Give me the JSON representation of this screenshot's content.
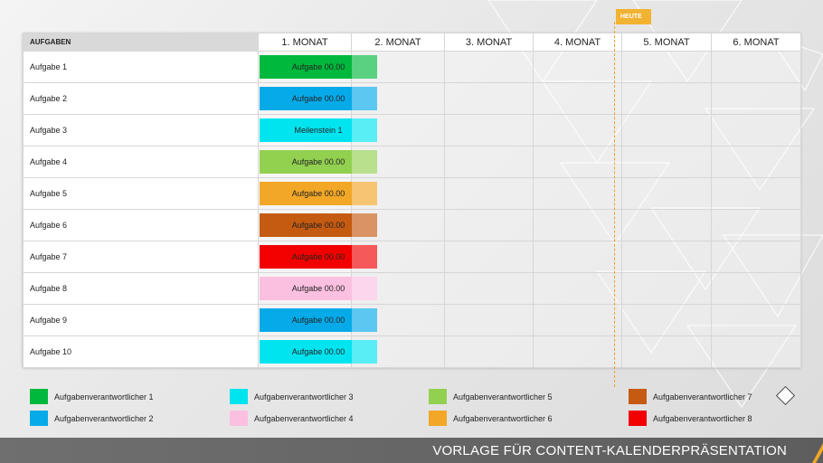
{
  "header": {
    "task_column": "AUFGABEN"
  },
  "months": [
    "1. MONAT",
    "2. MONAT",
    "3. MONAT",
    "4. MONAT",
    "5. MONAT",
    "6. MONAT"
  ],
  "today_label": "HEUTE",
  "tasks": [
    {
      "name": "Aufgabe 1",
      "bar": "Aufgabe 00.00",
      "color": "#00b83c"
    },
    {
      "name": "Aufgabe 2",
      "bar": "Aufgabe 00.00",
      "color": "#06aae8"
    },
    {
      "name": "Aufgabe 3",
      "bar": "Meilenstein 1",
      "color": "#00e4f0"
    },
    {
      "name": "Aufgabe 4",
      "bar": "Aufgabe 00.00",
      "color": "#92d050"
    },
    {
      "name": "Aufgabe 5",
      "bar": "Aufgabe 00.00",
      "color": "#f2a727"
    },
    {
      "name": "Aufgabe 6",
      "bar": "Aufgabe 00.00",
      "color": "#c55a11"
    },
    {
      "name": "Aufgabe 7",
      "bar": "Aufgabe 00.00",
      "color": "#f20000"
    },
    {
      "name": "Aufgabe 8",
      "bar": "Aufgabe 00.00",
      "color": "#fbc0e0"
    },
    {
      "name": "Aufgabe 9",
      "bar": "Aufgabe 00.00",
      "color": "#06aae8"
    },
    {
      "name": "Aufgabe 10",
      "bar": "Aufgabe 00.00",
      "color": "#00e4f0"
    }
  ],
  "legend": [
    {
      "label": "Aufgabenverantwortlicher 1",
      "color": "#00b83c"
    },
    {
      "label": "Aufgabenverantwortlicher 2",
      "color": "#06aae8"
    },
    {
      "label": "Aufgabenverantwortlicher 3",
      "color": "#00e4f0"
    },
    {
      "label": "Aufgabenverantwortlicher 4",
      "color": "#fbc0e0"
    },
    {
      "label": "Aufgabenverantwortlicher 5",
      "color": "#92d050"
    },
    {
      "label": "Aufgabenverantwortlicher 6",
      "color": "#f2a727"
    },
    {
      "label": "Aufgabenverantwortlicher 7",
      "color": "#c55a11"
    },
    {
      "label": "Aufgabenverantwortlicher 8",
      "color": "#f20000"
    }
  ],
  "footer": {
    "title": "VORLAGE FÜR CONTENT-KALENDERPRÄSENTATION",
    "accent_color": "#f2a727"
  }
}
